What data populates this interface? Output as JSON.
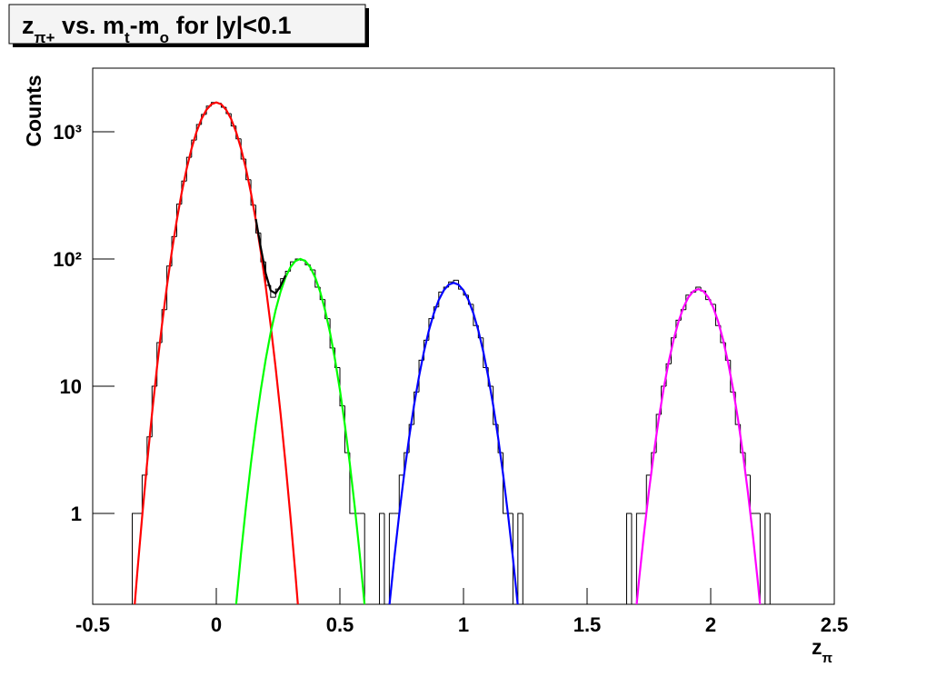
{
  "chart_data": {
    "type": "histogram",
    "title": [
      "z",
      "π+",
      " vs. m",
      "t",
      "-m",
      "o",
      " for |y|<0.1"
    ],
    "x_label": [
      "z",
      "π"
    ],
    "y_label": "Counts",
    "log_y": true,
    "color": "#000000",
    "xlim": [
      -0.5,
      2.5
    ],
    "xticks": [
      -0.5,
      0,
      0.5,
      1,
      1.5,
      2,
      2.5
    ],
    "ylim": [
      0.193,
      3162
    ],
    "yticks": [
      1,
      10,
      {
        "value": 100,
        "label": "10²"
      },
      {
        "value": 1000,
        "label": "10³"
      }
    ],
    "bins": [
      -0.5,
      -0.48,
      -0.46,
      -0.44,
      -0.42,
      -0.4,
      -0.38,
      -0.36,
      -0.34,
      -0.32,
      -0.3,
      -0.28,
      -0.26,
      -0.24,
      -0.22,
      -0.2,
      -0.18,
      -0.16,
      -0.14,
      -0.12,
      -0.1,
      -0.08,
      -0.06,
      -0.04,
      -0.02,
      0,
      0.02,
      0.04,
      0.06,
      0.08,
      0.1,
      0.12,
      0.14,
      0.16,
      0.18,
      0.2,
      0.22,
      0.24,
      0.26,
      0.28,
      0.3,
      0.32,
      0.34,
      0.36,
      0.38,
      0.4,
      0.42,
      0.44,
      0.46,
      0.48,
      0.5,
      0.52,
      0.54,
      0.56,
      0.58,
      0.6,
      0.62,
      0.64,
      0.66,
      0.68,
      0.7,
      0.72,
      0.74,
      0.76,
      0.78,
      0.8,
      0.82,
      0.84,
      0.86,
      0.88,
      0.9,
      0.92,
      0.94,
      0.96,
      0.98,
      1,
      1.02,
      1.04,
      1.06,
      1.08,
      1.1,
      1.12,
      1.14,
      1.16,
      1.18,
      1.2,
      1.22,
      1.24,
      1.26,
      1.28,
      1.3,
      1.32,
      1.34,
      1.36,
      1.38,
      1.4,
      1.42,
      1.44,
      1.46,
      1.48,
      1.5,
      1.52,
      1.54,
      1.56,
      1.58,
      1.6,
      1.62,
      1.64,
      1.66,
      1.68,
      1.7,
      1.72,
      1.74,
      1.76,
      1.78,
      1.8,
      1.82,
      1.84,
      1.86,
      1.88,
      1.9,
      1.92,
      1.94,
      1.96,
      1.98,
      2,
      2.02,
      2.04,
      2.06,
      2.08,
      2.1,
      2.12,
      2.14,
      2.16,
      2.18,
      2.2,
      2.22,
      2.24,
      2.26,
      2.28,
      2.3,
      2.32,
      2.34,
      2.36,
      2.38,
      2.4,
      2.42,
      2.44,
      2.46,
      2.48,
      2.5
    ],
    "values": [
      0,
      0,
      0,
      0,
      0,
      0,
      0,
      0,
      1,
      1,
      2,
      4,
      10,
      22,
      40,
      88,
      150,
      270,
      410,
      630,
      860,
      1140,
      1370,
      1590,
      1700,
      1680,
      1560,
      1390,
      1110,
      880,
      610,
      420,
      265,
      160,
      95,
      62,
      50,
      58,
      70,
      80,
      95,
      100,
      98,
      90,
      82,
      60,
      48,
      34,
      20,
      14,
      7,
      3,
      1,
      1,
      1,
      0,
      0,
      0,
      1,
      0,
      1,
      1,
      2,
      3,
      5,
      9,
      16,
      23,
      34,
      42,
      55,
      60,
      66,
      68,
      58,
      52,
      44,
      30,
      24,
      14,
      10,
      5,
      3,
      1,
      1,
      0,
      1,
      0,
      0,
      0,
      0,
      0,
      0,
      0,
      0,
      0,
      0,
      0,
      0,
      0,
      0,
      0,
      0,
      0,
      0,
      0,
      0,
      0,
      1,
      0,
      1,
      1,
      2,
      3,
      6,
      10,
      15,
      24,
      33,
      40,
      52,
      55,
      60,
      56,
      48,
      44,
      30,
      22,
      16,
      9,
      5,
      3,
      2,
      1,
      1,
      0,
      1,
      0,
      0,
      0,
      0,
      0,
      0,
      0,
      0,
      0,
      0,
      0,
      0,
      0
    ],
    "fits": [
      {
        "color": "#ff0000",
        "x": [
          -0.34,
          -0.32,
          -0.3,
          -0.28,
          -0.26,
          -0.24,
          -0.22,
          -0.2,
          -0.18,
          -0.16,
          -0.14,
          -0.12,
          -0.1,
          -0.08,
          -0.06,
          -0.04,
          -0.02,
          0,
          0.02,
          0.04,
          0.06,
          0.08,
          0.1,
          0.12,
          0.14,
          0.16,
          0.18,
          0.2,
          0.22,
          0.24,
          0.26,
          0.28,
          0.3,
          0.32,
          0.34
        ],
        "values": [
          0.111,
          0.335,
          0.94,
          2.47,
          6.08,
          14,
          30.1,
          60.7,
          114,
          201,
          332,
          512,
          739,
          998,
          1259,
          1488,
          1644,
          1700,
          1644,
          1488,
          1259,
          998,
          739,
          512,
          332,
          201,
          114,
          60.7,
          30.1,
          14,
          6.08,
          2.47,
          0.94,
          0.335,
          0.111
        ]
      },
      {
        "color": "#00ff00",
        "x": [
          0.08,
          0.1,
          0.12,
          0.14,
          0.16,
          0.18,
          0.2,
          0.22,
          0.24,
          0.26,
          0.28,
          0.3,
          0.32,
          0.34,
          0.36,
          0.38,
          0.4,
          0.42,
          0.44,
          0.46,
          0.48,
          0.5,
          0.52,
          0.54,
          0.56,
          0.58,
          0.6
        ],
        "values": [
          0.19,
          0.484,
          1.13,
          2.47,
          4.98,
          9.35,
          16.3,
          26.4,
          39.6,
          55.3,
          71.7,
          86.2,
          96.4,
          100,
          96.4,
          86.2,
          71.7,
          55.3,
          39.6,
          26.4,
          16.3,
          9.35,
          4.98,
          2.47,
          1.13,
          0.484,
          0.19
        ]
      },
      {
        "color": "#0000ff",
        "x": [
          0.7,
          0.72,
          0.74,
          0.76,
          0.78,
          0.8,
          0.82,
          0.84,
          0.86,
          0.88,
          0.9,
          0.92,
          0.94,
          0.96,
          0.98,
          1,
          1.02,
          1.04,
          1.06,
          1.08,
          1.1,
          1.12,
          1.14,
          1.16,
          1.18,
          1.2,
          1.22
        ],
        "values": [
          0.187,
          0.446,
          0.986,
          2.04,
          3.94,
          7.1,
          11.9,
          18.7,
          27.4,
          37.4,
          47.6,
          56.6,
          62.8,
          65,
          62.8,
          56.6,
          47.6,
          37.4,
          27.4,
          18.7,
          11.9,
          7.1,
          3.94,
          2.04,
          0.986,
          0.446,
          0.187
        ]
      },
      {
        "color": "#ff00ff",
        "x": [
          1.69,
          1.71,
          1.73,
          1.75,
          1.77,
          1.79,
          1.81,
          1.83,
          1.85,
          1.87,
          1.89,
          1.91,
          1.93,
          1.95,
          1.97,
          1.99,
          2.01,
          2.03,
          2.05,
          2.07,
          2.09,
          2.11,
          2.13,
          2.15,
          2.17,
          2.19,
          2.21
        ],
        "values": [
          0.119,
          0.298,
          0.69,
          1.49,
          2.98,
          5.57,
          9.63,
          15.5,
          23.2,
          32.3,
          41.7,
          50.1,
          55.9,
          58,
          55.9,
          50.1,
          41.7,
          32.3,
          23.2,
          15.5,
          9.63,
          5.57,
          2.98,
          1.49,
          0.69,
          0.298,
          0.119
        ]
      },
      {
        "color": "#000000",
        "x": [
          0.16,
          0.18,
          0.2,
          0.22,
          0.24,
          0.26,
          0.28
        ],
        "values": [
          206,
          123,
          77,
          56.5,
          53.6,
          61.4,
          74.2
        ]
      }
    ]
  }
}
